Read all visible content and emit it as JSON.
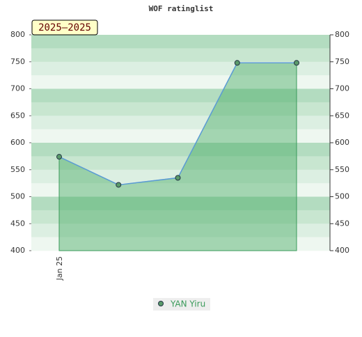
{
  "chart_data": {
    "type": "line",
    "title": "WOF ratinglist",
    "annotation": "2025–2025",
    "categories": [
      "Jan 25",
      null,
      null,
      null,
      null
    ],
    "series": [
      {
        "name": "YAN Yiru",
        "color": "#5a9a6a",
        "values": [
          574,
          522,
          535,
          748,
          748
        ]
      }
    ],
    "ylim": [
      400,
      800
    ],
    "yticks": [
      400,
      450,
      500,
      550,
      600,
      650,
      700,
      750,
      800
    ],
    "y2lim": [
      400,
      800
    ],
    "y2ticks": [
      400,
      450,
      500,
      550,
      600,
      650,
      700,
      750,
      800
    ],
    "legend": "bottom"
  }
}
